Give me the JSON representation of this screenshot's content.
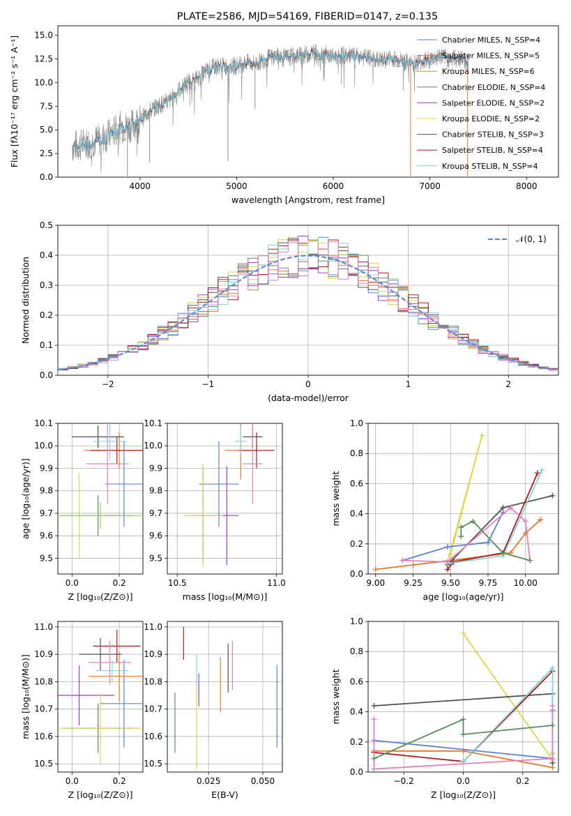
{
  "title": "PLATE=2586, MJD=54169, FIBERID=0147, z=0.135",
  "colors": {
    "s0": "#5b7fd6",
    "s1": "#e07a2a",
    "s2": "#c98a2a",
    "s3": "#5a8a5a",
    "s4": "#9b3ec9",
    "s5": "#d8d84a",
    "s6": "#505050",
    "s7": "#b01818",
    "s8": "#7fd6d6",
    "s9": "#e080c0",
    "s10": "#8a8a8a",
    "s11": "#9ad43a"
  },
  "chart_data": [
    {
      "id": "spectrum",
      "type": "line",
      "xlabel": "wavelength [Angstrom, rest frame]",
      "ylabel": "Flux [fλ10⁻¹⁷ erg cm⁻² s⁻¹ A⁻¹]",
      "xlim": [
        3150,
        8330
      ],
      "ylim": [
        0,
        16
      ],
      "xticks": [
        "4000",
        "5000",
        "6000",
        "7000",
        "8000"
      ],
      "yticks": [
        "0.0",
        "2.5",
        "5.0",
        "7.5",
        "10.0",
        "12.5",
        "15.0"
      ],
      "legend_position": "right",
      "series": [
        {
          "name": "Chabrier MILES, N_SSP=4",
          "color": "s0"
        },
        {
          "name": "Salpeter MILES, N_SSP=5",
          "color": "s1"
        },
        {
          "name": "Kroupa MILES, N_SSP=6",
          "color": "s2"
        },
        {
          "name": "Chabrier ELODIE, N_SSP=4",
          "color": "s3"
        },
        {
          "name": "Salpeter ELODIE, N_SSP=2",
          "color": "s4"
        },
        {
          "name": "Kroupa ELODIE, N_SSP=2",
          "color": "s5"
        },
        {
          "name": "Chabrier STELIB, N_SSP=3",
          "color": "s6"
        },
        {
          "name": "Salpeter STELIB, N_SSP=4",
          "color": "s7"
        },
        {
          "name": "Kroupa STELIB, N_SSP=4",
          "color": "s8"
        }
      ],
      "continuum": [
        [
          3300,
          3.2
        ],
        [
          3450,
          3.6
        ],
        [
          3600,
          4.0
        ],
        [
          3700,
          4.6
        ],
        [
          3800,
          5.3
        ],
        [
          3900,
          5.4
        ],
        [
          4000,
          6.0
        ],
        [
          4100,
          7.0
        ],
        [
          4200,
          7.6
        ],
        [
          4300,
          8.0
        ],
        [
          4400,
          9.2
        ],
        [
          4500,
          10.0
        ],
        [
          4600,
          10.5
        ],
        [
          4700,
          11.3
        ],
        [
          4800,
          11.8
        ],
        [
          4900,
          11.7
        ],
        [
          5000,
          11.8
        ],
        [
          5100,
          12.1
        ],
        [
          5200,
          12.0
        ],
        [
          5300,
          12.5
        ],
        [
          5400,
          12.8
        ],
        [
          5500,
          12.6
        ],
        [
          5600,
          12.8
        ],
        [
          5700,
          12.9
        ],
        [
          5800,
          13.2
        ],
        [
          5900,
          13.0
        ],
        [
          6000,
          12.7
        ],
        [
          6100,
          12.9
        ],
        [
          6200,
          12.8
        ],
        [
          6300,
          12.7
        ],
        [
          6400,
          12.5
        ],
        [
          6500,
          12.3
        ],
        [
          6600,
          12.6
        ],
        [
          6700,
          12.3
        ],
        [
          6800,
          12.0
        ],
        [
          6900,
          12.2
        ],
        [
          7000,
          12.4
        ],
        [
          7100,
          12.8
        ],
        [
          7200,
          12.5
        ],
        [
          7300,
          12.6
        ],
        [
          7400,
          12.2
        ]
      ],
      "spikes_down": [
        [
          3870,
          0
        ],
        [
          4100,
          1.5
        ],
        [
          4910,
          1.7
        ],
        [
          5190,
          7.2
        ],
        [
          5900,
          10.2
        ],
        [
          6800,
          0
        ],
        [
          7390,
          0
        ]
      ]
    },
    {
      "id": "residuals",
      "type": "bar",
      "xlabel": "(data-model)/error",
      "ylabel": "Normed distribution",
      "xlim": [
        -2.5,
        2.5
      ],
      "ylim": [
        0,
        0.5
      ],
      "xticks": [
        "−2",
        "−1",
        "0",
        "1",
        "2"
      ],
      "yticks": [
        "0.0",
        "0.1",
        "0.2",
        "0.3",
        "0.4",
        "0.5"
      ],
      "legend": "𝒩(0, 1)",
      "legend_position": "upper right",
      "bin_width": 0.1,
      "bin_start": -2.5
    },
    {
      "id": "age_vs_Z",
      "type": "scatter",
      "xlabel": "Z [log₁₀(Z/Z⊙)]",
      "ylabel": "age  [log₁₀(age/yr)]",
      "xlim": [
        -0.06,
        0.3
      ],
      "ylim": [
        9.43,
        10.1
      ],
      "xticks": [
        "0.0",
        "0.2"
      ],
      "yticks": [
        "9.5",
        "9.6",
        "9.7",
        "9.8",
        "9.9",
        "10.0",
        "10.1"
      ],
      "points": [
        {
          "x": 0.22,
          "y": 9.83,
          "xerr": 0.08,
          "yerr": 0.19,
          "color": "s0"
        },
        {
          "x": 0.2,
          "y": 9.98,
          "xerr": 0.15,
          "yerr": 0.08,
          "color": "s1"
        },
        {
          "x": 0.11,
          "y": 10.04,
          "xerr": 0.11,
          "yerr": 0.05,
          "color": "s6"
        },
        {
          "x": 0.19,
          "y": 9.98,
          "xerr": 0.11,
          "yerr": 0.06,
          "color": "s7"
        },
        {
          "x": 0.15,
          "y": 9.92,
          "xerr": 0.09,
          "yerr": 0.18,
          "color": "s9"
        },
        {
          "x": 0.16,
          "y": 10.02,
          "xerr": 0.07,
          "yerr": 0.08,
          "color": "s8"
        },
        {
          "x": 0.11,
          "y": 9.69,
          "xerr": 0.15,
          "yerr": 0.09,
          "color": "s3"
        },
        {
          "x": 0.03,
          "y": 9.69,
          "xerr": 0.08,
          "yerr": 0.19,
          "color": "s5"
        },
        {
          "x": 0.12,
          "y": 9.69,
          "xerr": 0.18,
          "yerr": 0.06,
          "color": "s11"
        }
      ]
    },
    {
      "id": "age_vs_mass",
      "type": "scatter",
      "xlabel": "mass [log₁₀(M/M⊙)]",
      "ylabel": "",
      "xlim": [
        10.45,
        11.03
      ],
      "ylim": [
        9.43,
        10.1
      ],
      "xticks": [
        "10.5",
        "11.0"
      ],
      "yticks": [
        "9.5",
        "9.6",
        "9.7",
        "9.8",
        "9.9",
        "10.0",
        "10.1"
      ],
      "points": [
        {
          "x": 10.71,
          "y": 9.83,
          "xerr": 0.1,
          "yerr": 0.19,
          "color": "s0"
        },
        {
          "x": 10.82,
          "y": 9.98,
          "xerr": 0.08,
          "yerr": 0.13,
          "color": "s1"
        },
        {
          "x": 10.88,
          "y": 10.04,
          "xerr": 0.05,
          "yerr": 0.05,
          "color": "s6"
        },
        {
          "x": 10.9,
          "y": 9.98,
          "xerr": 0.09,
          "yerr": 0.08,
          "color": "s7"
        },
        {
          "x": 10.88,
          "y": 9.92,
          "xerr": 0.05,
          "yerr": 0.18,
          "color": "s9"
        },
        {
          "x": 10.82,
          "y": 10.02,
          "xerr": 0.03,
          "yerr": 0.06,
          "color": "s8"
        },
        {
          "x": 10.63,
          "y": 9.69,
          "xerr": 0.06,
          "yerr": 0.21,
          "color": "s3"
        },
        {
          "x": 10.75,
          "y": 9.69,
          "xerr": 0.06,
          "yerr": 0.22,
          "color": "s4"
        },
        {
          "x": 10.63,
          "y": 9.69,
          "xerr": 0.1,
          "yerr": 0.23,
          "color": "s5"
        }
      ]
    },
    {
      "id": "weight_vs_age",
      "type": "line",
      "xlabel": "age  [log₁₀(age/yr)]",
      "ylabel": "mass weight",
      "xlim": [
        8.95,
        10.22
      ],
      "ylim": [
        0,
        1
      ],
      "xticks": [
        "9.00",
        "9.25",
        "9.50",
        "9.75",
        "10.00"
      ],
      "yticks": [
        "0.0",
        "0.2",
        "0.4",
        "0.6",
        "0.8",
        "1.0"
      ],
      "series": [
        {
          "color": "s5",
          "x": [
            9.48,
            9.71,
            9.5
          ],
          "y": [
            0.08,
            0.92,
            0.13
          ]
        },
        {
          "color": "s1",
          "x": [
            9.0,
            9.25,
            9.5,
            9.9,
            10.0,
            10.1
          ],
          "y": [
            0.03,
            0.06,
            0.09,
            0.14,
            0.27,
            0.36
          ]
        },
        {
          "color": "s0",
          "x": [
            9.18,
            9.48,
            9.75,
            9.85
          ],
          "y": [
            0.09,
            0.18,
            0.21,
            0.41
          ]
        },
        {
          "color": "s6",
          "x": [
            9.48,
            9.85,
            10.18
          ],
          "y": [
            0.06,
            0.44,
            0.52
          ]
        },
        {
          "color": "s7",
          "x": [
            9.48,
            9.52,
            9.85,
            10.08
          ],
          "y": [
            0.03,
            0.08,
            0.14,
            0.67
          ]
        },
        {
          "color": "s8",
          "x": [
            9.48,
            9.85,
            10.11
          ],
          "y": [
            0.07,
            0.12,
            0.69
          ]
        },
        {
          "color": "s9",
          "x": [
            9.18,
            9.48,
            9.9,
            10.0,
            10.03
          ],
          "y": [
            0.09,
            0.08,
            0.44,
            0.35,
            0.09
          ]
        },
        {
          "color": "s3",
          "x": [
            9.57,
            9.57,
            9.65,
            9.85,
            10.03
          ],
          "y": [
            0.25,
            0.31,
            0.35,
            0.14,
            0.09
          ]
        }
      ]
    },
    {
      "id": "mass_vs_Z",
      "type": "scatter",
      "xlabel": "Z [log₁₀(Z/Z⊙)]",
      "ylabel": "mass [log₁₀(M/M⊙)]",
      "xlim": [
        -0.06,
        0.3
      ],
      "ylim": [
        10.47,
        11.02
      ],
      "xticks": [
        "0.0",
        "0.2"
      ],
      "yticks": [
        "10.5",
        "10.6",
        "10.7",
        "10.8",
        "10.9",
        "11.0"
      ],
      "points": [
        {
          "x": 0.22,
          "y": 10.72,
          "xerr": 0.1,
          "yerr": 0.16,
          "color": "s0"
        },
        {
          "x": 0.2,
          "y": 10.82,
          "xerr": 0.13,
          "yerr": 0.09,
          "color": "s1"
        },
        {
          "x": 0.12,
          "y": 10.9,
          "xerr": 0.09,
          "yerr": 0.06,
          "color": "s6"
        },
        {
          "x": 0.19,
          "y": 10.93,
          "xerr": 0.1,
          "yerr": 0.06,
          "color": "s7"
        },
        {
          "x": 0.16,
          "y": 10.87,
          "xerr": 0.09,
          "yerr": 0.08,
          "color": "s9"
        },
        {
          "x": 0.17,
          "y": 10.84,
          "xerr": 0.07,
          "yerr": 0.04,
          "color": "s8"
        },
        {
          "x": 0.11,
          "y": 10.63,
          "xerr": 0.15,
          "yerr": 0.09,
          "color": "s3"
        },
        {
          "x": 0.03,
          "y": 10.75,
          "xerr": 0.15,
          "yerr": 0.11,
          "color": "s4"
        },
        {
          "x": 0.12,
          "y": 10.63,
          "xerr": 0.18,
          "yerr": 0.13,
          "color": "s5"
        }
      ]
    },
    {
      "id": "mass_vs_ebv",
      "type": "scatter",
      "xlabel": "E(B-V)",
      "ylabel": "",
      "xlim": [
        0.006,
        0.059
      ],
      "ylim": [
        10.47,
        11.02
      ],
      "xticks": [
        "0.025",
        "0.050"
      ],
      "yticks": [
        "10.5",
        "10.6",
        "10.7",
        "10.8",
        "10.9",
        "11.0"
      ],
      "points": [
        {
          "x": 0.0565,
          "y": 10.71,
          "yerr": 0.15,
          "color": "s0"
        },
        {
          "x": 0.0305,
          "y": 10.79,
          "yerr": 0.1,
          "color": "s1"
        },
        {
          "x": 0.034,
          "y": 10.85,
          "yerr": 0.09,
          "color": "s6"
        },
        {
          "x": 0.0135,
          "y": 10.94,
          "yerr": 0.06,
          "color": "s7"
        },
        {
          "x": 0.036,
          "y": 10.86,
          "yerr": 0.09,
          "color": "s9"
        },
        {
          "x": 0.0195,
          "y": 10.84,
          "yerr": 0.06,
          "color": "s8"
        },
        {
          "x": 0.0095,
          "y": 10.65,
          "yerr": 0.11,
          "color": "s3"
        },
        {
          "x": 0.0205,
          "y": 10.77,
          "yerr": 0.06,
          "color": "s4"
        },
        {
          "x": 0.0195,
          "y": 10.63,
          "yerr": 0.15,
          "color": "s5"
        }
      ]
    },
    {
      "id": "weight_vs_Z",
      "type": "line",
      "xlabel": "Z [log₁₀(Z/Z⊙)]",
      "ylabel": "mass weight",
      "xlim": [
        -0.32,
        0.32
      ],
      "ylim": [
        0,
        1
      ],
      "xticks": [
        "−0.2",
        "0.0",
        "0.2"
      ],
      "yticks": [
        "0.0",
        "0.2",
        "0.4",
        "0.6",
        "0.8",
        "1.0"
      ],
      "series": [
        {
          "color": "s5",
          "x": [
            0.0,
            0.3,
            0.3
          ],
          "y": [
            0.92,
            0.08,
            0.13
          ]
        },
        {
          "color": "s1",
          "x": [
            -0.3,
            0.0,
            0.3
          ],
          "y": [
            0.14,
            0.14,
            0.03
          ]
        },
        {
          "color": "s0",
          "x": [
            -0.3,
            0.3,
            0.3
          ],
          "y": [
            0.21,
            0.09,
            0.41
          ]
        },
        {
          "color": "s6",
          "x": [
            -0.3,
            0.3,
            0.3
          ],
          "y": [
            0.44,
            0.52,
            0.06
          ]
        },
        {
          "color": "s7",
          "x": [
            -0.3,
            0.0,
            0.3
          ],
          "y": [
            0.13,
            0.07,
            0.67
          ]
        },
        {
          "color": "s8",
          "x": [
            0.0,
            0.3,
            0.3
          ],
          "y": [
            0.07,
            0.69,
            0.12
          ]
        },
        {
          "color": "s9",
          "x": [
            -0.3,
            -0.3,
            0.3,
            0.3
          ],
          "y": [
            0.35,
            0.02,
            0.09,
            0.44
          ]
        },
        {
          "color": "s3",
          "x": [
            -0.3,
            0.0,
            0.0,
            0.3
          ],
          "y": [
            0.09,
            0.35,
            0.25,
            0.31
          ]
        }
      ]
    }
  ]
}
